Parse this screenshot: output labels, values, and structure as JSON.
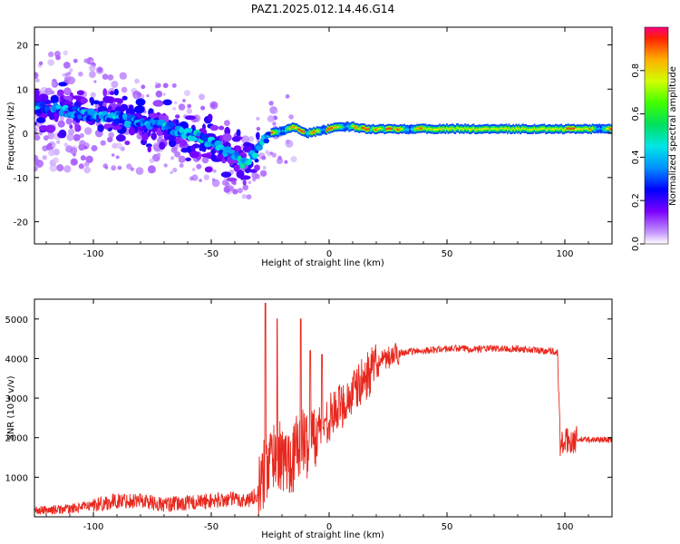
{
  "title": "PAZ1.2025.012.14.46.G14",
  "chart_data": [
    {
      "type": "heatmap",
      "title": "PAZ1.2025.012.14.46.G14",
      "xlabel": "Height of straight line (km)",
      "ylabel": "Frequency (Hz)",
      "xlim": [
        -125,
        120
      ],
      "ylim": [
        -25,
        24
      ],
      "xticks": [
        -100,
        -50,
        0,
        50,
        100
      ],
      "yticks": [
        -20,
        -10,
        0,
        10,
        20
      ],
      "ridge": {
        "x": [
          -120,
          -110,
          -100,
          -90,
          -80,
          -70,
          -60,
          -50,
          -45,
          -40,
          -36,
          -33,
          -30,
          -27,
          -25,
          -20,
          -15,
          -10,
          -5,
          0,
          5,
          10,
          15,
          20,
          30,
          50,
          80,
          100,
          120
        ],
        "freq": [
          5.5,
          5,
          4,
          3.5,
          2.5,
          1.5,
          0,
          -2,
          -3.5,
          -5,
          -7,
          -5.5,
          -3,
          -1,
          0,
          0.5,
          1.5,
          0,
          0.5,
          1,
          1.5,
          1.5,
          1,
          1,
          1,
          1,
          1,
          1,
          1
        ]
      },
      "colorbar": {
        "label": "Normalized spectral amplitude",
        "ticks": [
          "0.0",
          "0.2",
          "0.4",
          "0.6",
          "0.8"
        ],
        "range": [
          0,
          1
        ]
      }
    },
    {
      "type": "line",
      "xlabel": "Height of straight line (km)",
      "ylabel": "SNR (10 * v/v)",
      "xlim": [
        -125,
        120
      ],
      "ylim": [
        0,
        5500
      ],
      "xticks": [
        -100,
        -50,
        0,
        50,
        100
      ],
      "yticks": [
        1000,
        2000,
        3000,
        4000,
        5000
      ],
      "series": [
        {
          "name": "SNR",
          "color": "#e8281e",
          "x": [
            -125,
            -110,
            -100,
            -90,
            -80,
            -70,
            -60,
            -50,
            -40,
            -35,
            -30,
            -28,
            -25,
            -22,
            -20,
            -15,
            -12,
            -10,
            -5,
            0,
            5,
            10,
            15,
            20,
            25,
            30,
            40,
            50,
            60,
            70,
            80,
            90,
            95,
            96,
            97,
            98,
            100,
            105,
            110,
            120
          ],
          "y": [
            150,
            200,
            300,
            400,
            420,
            300,
            350,
            400,
            450,
            400,
            600,
            1000,
            1500,
            1700,
            1400,
            1500,
            2000,
            1800,
            2200,
            2500,
            2800,
            3100,
            3500,
            3800,
            4000,
            4150,
            4200,
            4250,
            4250,
            4250,
            4250,
            4200,
            4200,
            4150,
            4150,
            1800,
            1900,
            1950,
            1950,
            1950
          ]
        }
      ],
      "spikes": [
        {
          "x": -27,
          "y": 5400
        },
        {
          "x": -22,
          "y": 5000
        },
        {
          "x": -12,
          "y": 5000
        },
        {
          "x": -8,
          "y": 4200
        },
        {
          "x": -3,
          "y": 4100
        }
      ]
    }
  ]
}
